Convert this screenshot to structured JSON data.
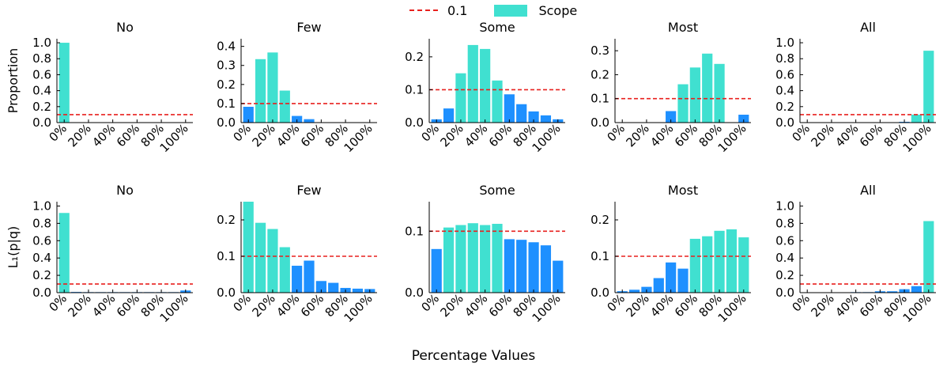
{
  "figure": {
    "xlabel": "Percentage Values",
    "legend": [
      {
        "label": "0.1",
        "kind": "dashed-line",
        "color": "#e8201e"
      },
      {
        "label": "Scope",
        "kind": "patch",
        "color": "#40e0d0"
      }
    ],
    "colors": {
      "scope": "#40e0d0",
      "other": "#1e90ff",
      "reference_line": "#e8201e"
    },
    "reference_value": 0.1
  },
  "chart_data": [
    {
      "type": "bar",
      "row": 0,
      "col": 0,
      "title": "No",
      "ylabel": "Proportion",
      "x": [
        0,
        10,
        20,
        30,
        40,
        50,
        60,
        70,
        80,
        90,
        100
      ],
      "values": [
        1.0,
        0,
        0,
        0,
        0,
        0,
        0,
        0,
        0,
        0,
        0
      ],
      "scope": [
        0
      ],
      "ylim": [
        0,
        1.05
      ],
      "yticks": [
        0.0,
        0.2,
        0.4,
        0.6,
        0.8,
        1.0
      ],
      "ytick_labels": [
        "0.0",
        "0.2",
        "0.4",
        "0.6",
        "0.8",
        "1.0"
      ],
      "xticks": [
        0,
        20,
        40,
        60,
        80,
        100
      ],
      "xtick_labels": [
        "0%",
        "20%",
        "40%",
        "60%",
        "80%",
        "100%"
      ]
    },
    {
      "type": "bar",
      "row": 0,
      "col": 1,
      "title": "Few",
      "ylabel": "",
      "x": [
        0,
        10,
        20,
        30,
        40,
        50,
        60,
        70,
        80,
        90,
        100
      ],
      "values": [
        0.083,
        0.333,
        0.368,
        0.168,
        0.035,
        0.018,
        0,
        0,
        0,
        0,
        0
      ],
      "scope": [
        10,
        20,
        30
      ],
      "ylim": [
        0,
        0.44
      ],
      "yticks": [
        0.0,
        0.1,
        0.2,
        0.3,
        0.4
      ],
      "ytick_labels": [
        "0.0",
        "0.1",
        "0.2",
        "0.3",
        "0.4"
      ],
      "xticks": [
        0,
        20,
        40,
        60,
        80,
        100
      ],
      "xtick_labels": [
        "0%",
        "20%",
        "40%",
        "60%",
        "80%",
        "100%"
      ]
    },
    {
      "type": "bar",
      "row": 0,
      "col": 2,
      "title": "Some",
      "ylabel": "",
      "x": [
        0,
        10,
        20,
        30,
        40,
        50,
        60,
        70,
        80,
        90,
        100
      ],
      "values": [
        0.01,
        0.043,
        0.15,
        0.236,
        0.224,
        0.128,
        0.086,
        0.056,
        0.034,
        0.022,
        0.01
      ],
      "scope": [
        20,
        30,
        40,
        50
      ],
      "ylim": [
        0,
        0.255
      ],
      "yticks": [
        0.0,
        0.1,
        0.2
      ],
      "ytick_labels": [
        "0.0",
        "0.1",
        "0.2"
      ],
      "xticks": [
        0,
        20,
        40,
        60,
        80,
        100
      ],
      "xtick_labels": [
        "0%",
        "20%",
        "40%",
        "60%",
        "80%",
        "100%"
      ]
    },
    {
      "type": "bar",
      "row": 0,
      "col": 3,
      "title": "Most",
      "ylabel": "",
      "x": [
        0,
        10,
        20,
        30,
        40,
        50,
        60,
        70,
        80,
        90,
        100
      ],
      "values": [
        0,
        0,
        0,
        0,
        0.048,
        0.16,
        0.23,
        0.288,
        0.245,
        0,
        0.033
      ],
      "scope": [
        50,
        60,
        70,
        80
      ],
      "ylim": [
        0,
        0.35
      ],
      "yticks": [
        0.0,
        0.1,
        0.2,
        0.3
      ],
      "ytick_labels": [
        "0.0",
        "0.1",
        "0.2",
        "0.3"
      ],
      "xticks": [
        0,
        20,
        40,
        60,
        80,
        100
      ],
      "xtick_labels": [
        "0%",
        "20%",
        "40%",
        "60%",
        "80%",
        "100%"
      ]
    },
    {
      "type": "bar",
      "row": 0,
      "col": 4,
      "title": "All",
      "ylabel": "",
      "x": [
        0,
        10,
        20,
        30,
        40,
        50,
        60,
        70,
        80,
        90,
        100
      ],
      "values": [
        0,
        0,
        0,
        0,
        0,
        0,
        0,
        0,
        0.01,
        0.1,
        0.9
      ],
      "scope": [
        90,
        100
      ],
      "ylim": [
        0,
        1.05
      ],
      "yticks": [
        0.0,
        0.2,
        0.4,
        0.6,
        0.8,
        1.0
      ],
      "ytick_labels": [
        "0.0",
        "0.2",
        "0.4",
        "0.6",
        "0.8",
        "1.0"
      ],
      "xticks": [
        0,
        20,
        40,
        60,
        80,
        100
      ],
      "xtick_labels": [
        "0%",
        "20%",
        "40%",
        "60%",
        "80%",
        "100%"
      ]
    },
    {
      "type": "bar",
      "row": 1,
      "col": 0,
      "title": "No",
      "ylabel": "L₁(p|q)",
      "x": [
        0,
        10,
        20,
        30,
        40,
        50,
        60,
        70,
        80,
        90,
        100
      ],
      "values": [
        0.92,
        0.008,
        0.006,
        0.006,
        0.006,
        0.006,
        0.006,
        0.006,
        0.006,
        0.006,
        0.025
      ],
      "scope": [
        0
      ],
      "ylim": [
        0,
        1.05
      ],
      "yticks": [
        0.0,
        0.2,
        0.4,
        0.6,
        0.8,
        1.0
      ],
      "ytick_labels": [
        "0.0",
        "0.2",
        "0.4",
        "0.6",
        "0.8",
        "1.0"
      ],
      "xticks": [
        0,
        20,
        40,
        60,
        80,
        100
      ],
      "xtick_labels": [
        "0%",
        "20%",
        "40%",
        "60%",
        "80%",
        "100%"
      ]
    },
    {
      "type": "bar",
      "row": 1,
      "col": 1,
      "title": "Few",
      "ylabel": "",
      "x": [
        0,
        10,
        20,
        30,
        40,
        50,
        60,
        70,
        80,
        90,
        100
      ],
      "values": [
        0.25,
        0.192,
        0.175,
        0.125,
        0.074,
        0.088,
        0.032,
        0.027,
        0.013,
        0.011,
        0.01
      ],
      "scope": [
        0,
        10,
        20,
        30
      ],
      "ylim": [
        0,
        0.25
      ],
      "yticks": [
        0.0,
        0.1,
        0.2
      ],
      "ytick_labels": [
        "0.0",
        "0.1",
        "0.2"
      ],
      "xticks": [
        0,
        20,
        40,
        60,
        80,
        100
      ],
      "xtick_labels": [
        "0%",
        "20%",
        "40%",
        "60%",
        "80%",
        "100%"
      ]
    },
    {
      "type": "bar",
      "row": 1,
      "col": 2,
      "title": "Some",
      "ylabel": "",
      "x": [
        0,
        10,
        20,
        30,
        40,
        50,
        60,
        70,
        80,
        90,
        100
      ],
      "values": [
        0.071,
        0.106,
        0.11,
        0.113,
        0.11,
        0.112,
        0.087,
        0.086,
        0.082,
        0.077,
        0.052
      ],
      "scope": [
        10,
        20,
        30,
        40,
        50
      ],
      "ylim": [
        0,
        0.148
      ],
      "yticks": [
        0.0,
        0.1
      ],
      "ytick_labels": [
        "0.0",
        "0.1"
      ],
      "xticks": [
        0,
        20,
        40,
        60,
        80,
        100
      ],
      "xtick_labels": [
        "0%",
        "20%",
        "40%",
        "60%",
        "80%",
        "100%"
      ]
    },
    {
      "type": "bar",
      "row": 1,
      "col": 3,
      "title": "Most",
      "ylabel": "",
      "x": [
        0,
        10,
        20,
        30,
        40,
        50,
        60,
        70,
        80,
        90,
        100
      ],
      "values": [
        0.004,
        0.008,
        0.016,
        0.04,
        0.083,
        0.066,
        0.148,
        0.155,
        0.17,
        0.174,
        0.152
      ],
      "scope": [
        60,
        70,
        80,
        90,
        100
      ],
      "ylim": [
        0,
        0.25
      ],
      "yticks": [
        0.0,
        0.1,
        0.2
      ],
      "ytick_labels": [
        "0.0",
        "0.1",
        "0.2"
      ],
      "xticks": [
        0,
        20,
        40,
        60,
        80,
        100
      ],
      "xtick_labels": [
        "0%",
        "20%",
        "40%",
        "60%",
        "80%",
        "100%"
      ]
    },
    {
      "type": "bar",
      "row": 1,
      "col": 4,
      "title": "All",
      "ylabel": "",
      "x": [
        0,
        10,
        20,
        30,
        40,
        50,
        60,
        70,
        80,
        90,
        100
      ],
      "values": [
        0.004,
        0.004,
        0.004,
        0.004,
        0.006,
        0.006,
        0.016,
        0.016,
        0.04,
        0.075,
        0.826
      ],
      "scope": [
        100
      ],
      "ylim": [
        0,
        1.05
      ],
      "yticks": [
        0.0,
        0.2,
        0.4,
        0.6,
        0.8,
        1.0
      ],
      "ytick_labels": [
        "0.0",
        "0.2",
        "0.4",
        "0.6",
        "0.8",
        "1.0"
      ],
      "xticks": [
        0,
        20,
        40,
        60,
        80,
        100
      ],
      "xtick_labels": [
        "0%",
        "20%",
        "40%",
        "60%",
        "80%",
        "100%"
      ]
    }
  ]
}
